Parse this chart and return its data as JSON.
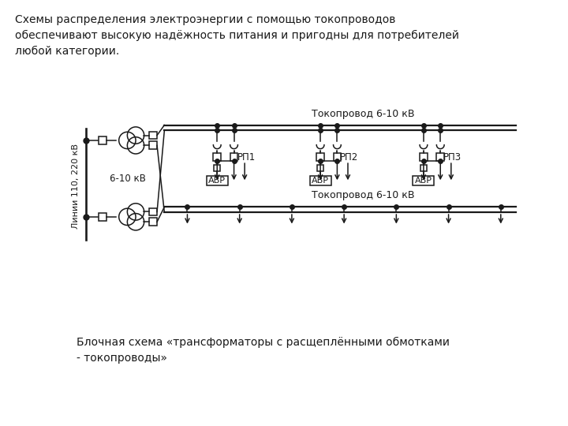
{
  "title_text": "Схемы распределения электроэнергии с помощью токопроводов\nобеспечивают высокую надёжность питания и пригодны для потребителей\nлюбой категории.",
  "caption_text": "Блочная схема «трансформаторы с расщеплёнными обмотками\n- токопроводы»",
  "tokoprovod_label": "Токопровод 6-10 кВ",
  "voltage_label": "6-10 кВ",
  "line_label": "Линии 110, 220 кВ",
  "rp_labels": [
    "РП1",
    "РП2",
    "РП3"
  ],
  "avr_label": "АВР",
  "bg_color": "#ffffff",
  "line_color": "#1a1a1a",
  "text_color": "#1a1a1a",
  "lw": 1.1
}
